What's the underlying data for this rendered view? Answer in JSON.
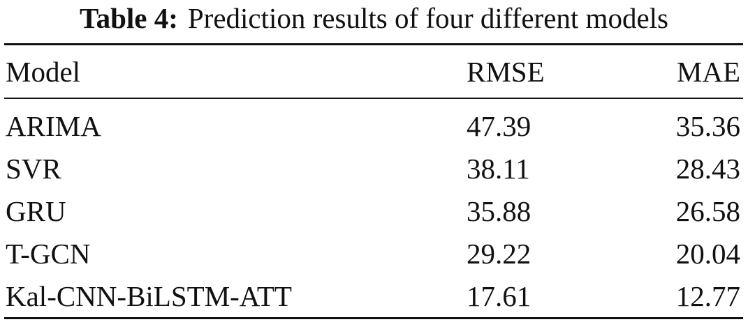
{
  "caption": {
    "label": "Table 4:",
    "text": "Prediction results of four different models"
  },
  "table": {
    "header": [
      "Model",
      "RMSE",
      "MAE"
    ],
    "rows": [
      [
        "ARIMA",
        "47.39",
        "35.36"
      ],
      [
        "SVR",
        "38.11",
        "28.43"
      ],
      [
        "GRU",
        "35.88",
        "26.58"
      ],
      [
        "T-GCN",
        "29.22",
        "20.04"
      ],
      [
        "Kal-CNN-BiLSTM-ATT",
        "17.61",
        "12.77"
      ]
    ]
  }
}
